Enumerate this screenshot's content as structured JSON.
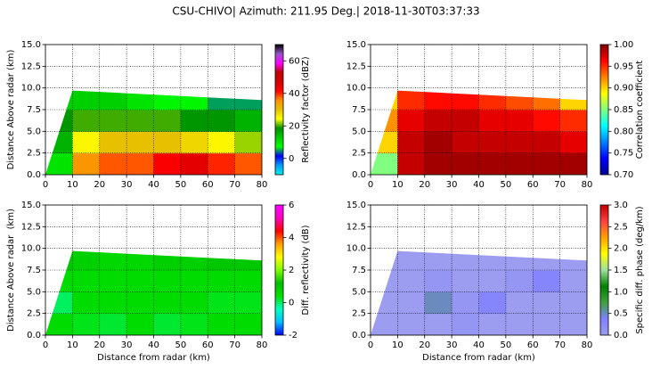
{
  "title": "CSU-CHIVO| Azimuth: 211.95 Deg.| 2018-11-30T03:37:33",
  "chart_data": [
    {
      "type": "heatmap",
      "ylabel": "Distance Above radar (km)",
      "colorbar_label": "Reflectivity factor (dBZ)",
      "xbins": [
        0,
        10,
        20,
        30,
        40,
        50,
        60,
        70,
        80
      ],
      "ybins": [
        0,
        2.5,
        5,
        7.5,
        10
      ],
      "values": [
        [
          10,
          35,
          38,
          38,
          42,
          45,
          40,
          38
        ],
        [
          15,
          25,
          30,
          30,
          30,
          28,
          25,
          22
        ],
        [
          18,
          20,
          20,
          20,
          20,
          18,
          18,
          15
        ],
        [
          12,
          12,
          12,
          10,
          8,
          8,
          5,
          5
        ]
      ],
      "xlim": [
        0,
        80
      ],
      "ylim": [
        0,
        15
      ],
      "xticks": [
        0,
        10,
        20,
        30,
        40,
        50,
        60,
        70,
        80
      ],
      "yticks": [
        {
          "value": 0,
          "label": "0.0"
        },
        2.5,
        {
          "value": 5,
          "label": "5.0"
        },
        7.5,
        {
          "value": 10,
          "label": "10.0"
        },
        12.5,
        {
          "value": 15,
          "label": "15.0"
        }
      ],
      "clim": [
        -10,
        70
      ],
      "cticks": [
        0,
        20,
        40,
        60
      ],
      "colormap": [
        "#00ecec",
        "#01a0f6",
        "#0000f6",
        "#00ff00",
        "#00c800",
        "#009000",
        "#ffff00",
        "#e7c000",
        "#ff9000",
        "#ff0000",
        "#d60000",
        "#c00000",
        "#ff00ff",
        "#9955c9",
        "#000000"
      ],
      "grid": true
    },
    {
      "type": "heatmap",
      "colorbar_label": "Correlation coefficient",
      "xbins": [
        0,
        10,
        20,
        30,
        40,
        50,
        60,
        70,
        80
      ],
      "ybins": [
        0,
        2.5,
        5,
        7.5,
        10
      ],
      "values": [
        [
          0.85,
          0.98,
          0.99,
          0.99,
          0.99,
          0.99,
          0.99,
          0.99
        ],
        [
          0.9,
          0.98,
          0.99,
          0.98,
          0.98,
          0.98,
          0.98,
          0.97
        ],
        [
          0.92,
          0.97,
          0.98,
          0.98,
          0.97,
          0.97,
          0.96,
          0.95
        ],
        [
          0.9,
          0.95,
          0.96,
          0.96,
          0.95,
          0.94,
          0.93,
          0.9
        ]
      ],
      "xlim": [
        0,
        80
      ],
      "ylim": [
        0,
        15
      ],
      "xticks": [
        0,
        10,
        20,
        30,
        40,
        50,
        60,
        70,
        80
      ],
      "yticks": [
        {
          "value": 0,
          "label": "0.0"
        },
        2.5,
        {
          "value": 5,
          "label": "5.0"
        },
        7.5,
        {
          "value": 10,
          "label": "10.0"
        },
        12.5,
        {
          "value": 15,
          "label": "15.0"
        }
      ],
      "clim": [
        0.7,
        1.0
      ],
      "cticks": [
        {
          "value": 0.7,
          "label": "0.70"
        },
        0.75,
        {
          "value": 0.8,
          "label": "0.80"
        },
        0.85,
        {
          "value": 0.9,
          "label": "0.90"
        },
        0.95,
        {
          "value": 1.0,
          "label": "1.00"
        }
      ],
      "colormap": [
        "#00008f",
        "#0000ff",
        "#0080ff",
        "#00ffff",
        "#80ff80",
        "#ffff00",
        "#ff8000",
        "#ff0000",
        "#800000"
      ],
      "grid": true
    },
    {
      "type": "heatmap",
      "xlabel": "Distance from radar (km)",
      "ylabel": "Distance Above radar  (km)",
      "colorbar_label": "Diff. reflectivity (dB)",
      "xbins": [
        0,
        10,
        20,
        30,
        40,
        50,
        60,
        70,
        80
      ],
      "ybins": [
        0,
        2.5,
        5,
        7.5,
        10
      ],
      "values": [
        [
          0.5,
          0.3,
          0.2,
          0.5,
          0.2,
          0.3,
          0.5,
          0.5
        ],
        [
          0,
          0.5,
          0.5,
          0.5,
          0.5,
          0.5,
          0.3,
          0.3
        ],
        [
          0.5,
          0.5,
          0.5,
          0.5,
          0.5,
          0.5,
          0.5,
          0.5
        ],
        [
          1,
          0.8,
          0.6,
          0.6,
          0.8,
          0.8,
          1,
          1
        ]
      ],
      "xlim": [
        0,
        80
      ],
      "ylim": [
        0,
        15
      ],
      "xticks": [
        0,
        10,
        20,
        30,
        40,
        50,
        60,
        70,
        80
      ],
      "yticks": [
        {
          "value": 0,
          "label": "0.0"
        },
        2.5,
        {
          "value": 5,
          "label": "5.0"
        },
        7.5,
        {
          "value": 10,
          "label": "10.0"
        },
        12.5,
        {
          "value": 15,
          "label": "15.0"
        }
      ],
      "clim": [
        -2,
        6
      ],
      "cticks": [
        -2,
        0,
        2,
        4,
        6
      ],
      "colormap": [
        "#0000ff",
        "#00c0ff",
        "#00ffc0",
        "#00e000",
        "#00c000",
        "#80ff00",
        "#ffff00",
        "#ffa000",
        "#ff0000",
        "#ff00c0",
        "#ff00ff"
      ],
      "grid": true
    },
    {
      "type": "heatmap",
      "xlabel": "Distance from radar (km)",
      "colorbar_label": "Specific diff. phase (deg/km)",
      "xbins": [
        0,
        10,
        20,
        30,
        40,
        50,
        60,
        70,
        80
      ],
      "ybins": [
        0,
        2.5,
        5,
        7.5,
        10
      ],
      "values": [
        [
          0,
          0,
          0,
          0.1,
          0,
          0,
          0,
          0
        ],
        [
          0,
          0,
          0.5,
          0.1,
          0.3,
          0,
          0,
          0
        ],
        [
          0,
          0,
          0.1,
          0,
          0,
          0.1,
          0.3,
          0
        ],
        [
          0,
          0,
          0,
          0,
          0,
          0,
          0,
          0
        ]
      ],
      "xlim": [
        0,
        80
      ],
      "ylim": [
        0,
        15
      ],
      "xticks": [
        0,
        10,
        20,
        30,
        40,
        50,
        60,
        70,
        80
      ],
      "yticks": [
        {
          "value": 0,
          "label": "0.0"
        },
        2.5,
        {
          "value": 5,
          "label": "5.0"
        },
        7.5,
        {
          "value": 10,
          "label": "10.0"
        },
        12.5,
        {
          "value": 15,
          "label": "15.0"
        }
      ],
      "clim": [
        0,
        3
      ],
      "cticks": [
        {
          "value": 0,
          "label": "0.0"
        },
        0.5,
        {
          "value": 1,
          "label": "1.0"
        },
        1.5,
        {
          "value": 2,
          "label": "2.0"
        },
        2.5,
        {
          "value": 3,
          "label": "3.0"
        }
      ],
      "colormap": [
        "#9c9cf0",
        "#8080ff",
        "#40a040",
        "#008000",
        "#a0e0a0",
        "#ffff00",
        "#ffa000",
        "#ff4040",
        "#c00000"
      ],
      "grid": true
    }
  ]
}
